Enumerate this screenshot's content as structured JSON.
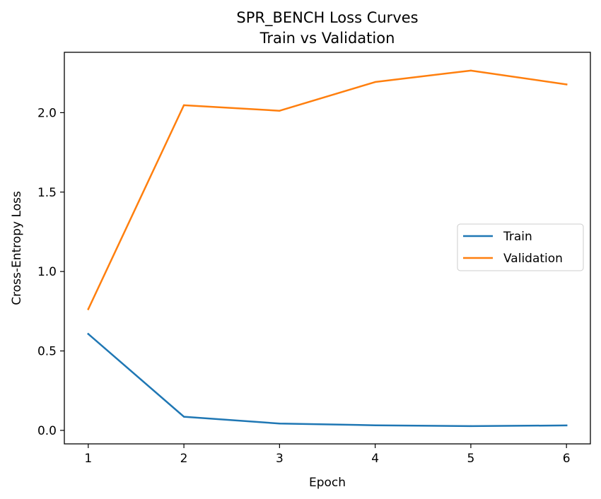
{
  "chart_data": {
    "type": "line",
    "title": "SPR_BENCH Loss Curves",
    "subtitle": "Train vs Validation",
    "xlabel": "Epoch",
    "ylabel": "Cross-Entropy Loss",
    "x": [
      1,
      2,
      3,
      4,
      5,
      6
    ],
    "xticks": [
      1,
      2,
      3,
      4,
      5,
      6
    ],
    "yticks": [
      0.0,
      0.5,
      1.0,
      1.5,
      2.0
    ],
    "ytick_labels": [
      "0.0",
      "0.5",
      "1.0",
      "1.5",
      "2.0"
    ],
    "xlim": [
      0.75,
      6.25
    ],
    "ylim": [
      -0.085,
      2.38
    ],
    "grid": false,
    "legend_position": "center-right",
    "series": [
      {
        "name": "Train",
        "color": "#1f77b4",
        "values": [
          0.607,
          0.086,
          0.043,
          0.032,
          0.027,
          0.031
        ]
      },
      {
        "name": "Validation",
        "color": "#ff7f0e",
        "values": [
          0.763,
          2.047,
          2.012,
          2.193,
          2.265,
          2.178
        ]
      }
    ]
  }
}
